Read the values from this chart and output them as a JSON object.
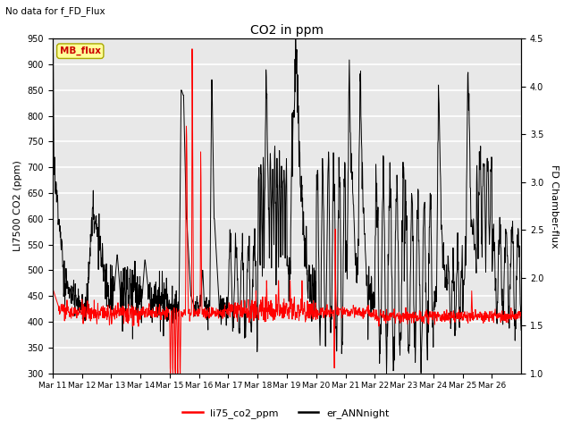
{
  "title": "CO2 in ppm",
  "top_label": "No data for f_FD_Flux",
  "ylabel_left": "LI7500 CO2 (ppm)",
  "ylabel_right": "FD Chamber-flux",
  "ylim_left": [
    300,
    950
  ],
  "ylim_right": [
    1.0,
    4.5
  ],
  "yticks_left": [
    300,
    350,
    400,
    450,
    500,
    550,
    600,
    650,
    700,
    750,
    800,
    850,
    900,
    950
  ],
  "yticks_right": [
    1.0,
    1.5,
    2.0,
    2.5,
    3.0,
    3.5,
    4.0,
    4.5
  ],
  "xtick_labels": [
    "Mar 11",
    "Mar 12",
    "Mar 13",
    "Mar 14",
    "Mar 15",
    "Mar 16",
    "Mar 17",
    "Mar 18",
    "Mar 19",
    "Mar 20",
    "Mar 21",
    "Mar 22",
    "Mar 23",
    "Mar 24",
    "Mar 25",
    "Mar 26"
  ],
  "line1_color": "#ff0000",
  "line1_label": "li75_co2_ppm",
  "line2_color": "#000000",
  "line2_label": "er_ANNnight",
  "mb_flux_color": "#cc0000",
  "mb_flux_bg": "#ffff99",
  "grid_color": "#cccccc",
  "background_color": "#e8e8e8",
  "fig_width": 6.4,
  "fig_height": 4.8,
  "dpi": 100
}
